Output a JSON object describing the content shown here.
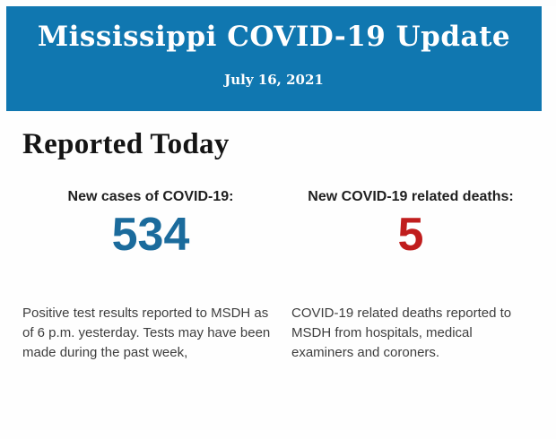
{
  "header": {
    "title": "Mississippi COVID-19 Update",
    "date": "July 16, 2021",
    "background_color": "#1077b0",
    "text_color": "#ffffff"
  },
  "content": {
    "heading": "Reported Today",
    "stats": [
      {
        "label": "New cases of COVID-19:",
        "value": "534",
        "value_color": "#1b6b9c",
        "description": "Positive test results reported to MSDH as of 6 p.m. yesterday. Tests may have been made during the past week,"
      },
      {
        "label": "New COVID-19 related deaths:",
        "value": "5",
        "value_color": "#c01d1d",
        "description": "COVID-19 related deaths reported to MSDH from hospitals, medical examiners and coroners."
      }
    ]
  }
}
